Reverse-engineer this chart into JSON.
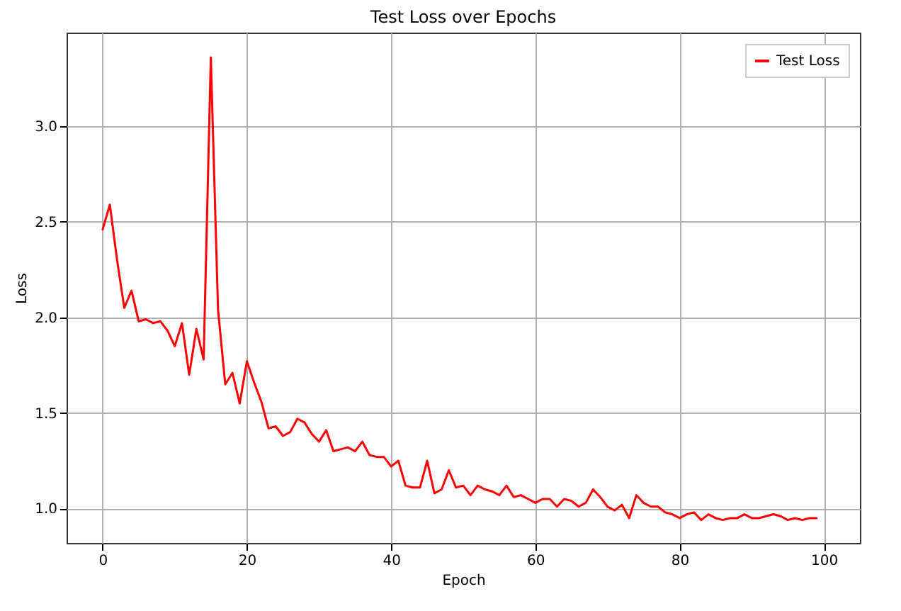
{
  "chart_data": {
    "type": "line",
    "title": "Test Loss over Epochs",
    "xlabel": "Epoch",
    "ylabel": "Loss",
    "x": [
      0,
      1,
      2,
      3,
      4,
      5,
      6,
      7,
      8,
      9,
      10,
      11,
      12,
      13,
      14,
      15,
      16,
      17,
      18,
      19,
      20,
      21,
      22,
      23,
      24,
      25,
      26,
      27,
      28,
      29,
      30,
      31,
      32,
      33,
      34,
      35,
      36,
      37,
      38,
      39,
      40,
      41,
      42,
      43,
      44,
      45,
      46,
      47,
      48,
      49,
      50,
      51,
      52,
      53,
      54,
      55,
      56,
      57,
      58,
      59,
      60,
      61,
      62,
      63,
      64,
      65,
      66,
      67,
      68,
      69,
      70,
      71,
      72,
      73,
      74,
      75,
      76,
      77,
      78,
      79,
      80,
      81,
      82,
      83,
      84,
      85,
      86,
      87,
      88,
      89,
      90,
      91,
      92,
      93,
      94,
      95,
      96,
      97,
      98,
      99
    ],
    "series": [
      {
        "name": "Test Loss",
        "color": "#ff0000",
        "values": [
          2.46,
          2.59,
          2.3,
          2.05,
          2.14,
          1.98,
          1.99,
          1.97,
          1.98,
          1.93,
          1.85,
          1.97,
          1.7,
          1.94,
          1.78,
          3.36,
          2.04,
          1.65,
          1.71,
          1.55,
          1.77,
          1.66,
          1.56,
          1.42,
          1.43,
          1.38,
          1.4,
          1.47,
          1.45,
          1.39,
          1.35,
          1.41,
          1.3,
          1.31,
          1.32,
          1.3,
          1.35,
          1.28,
          1.27,
          1.27,
          1.22,
          1.25,
          1.12,
          1.11,
          1.11,
          1.25,
          1.08,
          1.1,
          1.2,
          1.11,
          1.12,
          1.07,
          1.12,
          1.1,
          1.09,
          1.07,
          1.12,
          1.06,
          1.07,
          1.05,
          1.03,
          1.05,
          1.05,
          1.01,
          1.05,
          1.04,
          1.01,
          1.03,
          1.1,
          1.06,
          1.01,
          0.99,
          1.02,
          0.95,
          1.07,
          1.03,
          1.01,
          1.01,
          0.98,
          0.97,
          0.95,
          0.97,
          0.98,
          0.94,
          0.97,
          0.95,
          0.94,
          0.95,
          0.95,
          0.97,
          0.95,
          0.95,
          0.96,
          0.97,
          0.96,
          0.94,
          0.95,
          0.94,
          0.95,
          0.95
        ]
      }
    ],
    "xlim": [
      -5,
      105
    ],
    "xticks": [
      0,
      20,
      40,
      60,
      80,
      100
    ],
    "ylim": [
      0.82,
      3.49
    ],
    "yticks": [
      {
        "value": 1,
        "label": "1.0"
      },
      1.5,
      {
        "value": 2,
        "label": "2.0"
      },
      2.5,
      {
        "value": 3,
        "label": "3.0"
      }
    ],
    "grid": true,
    "legend": "top right",
    "marker": "none",
    "line_style": "solid"
  }
}
